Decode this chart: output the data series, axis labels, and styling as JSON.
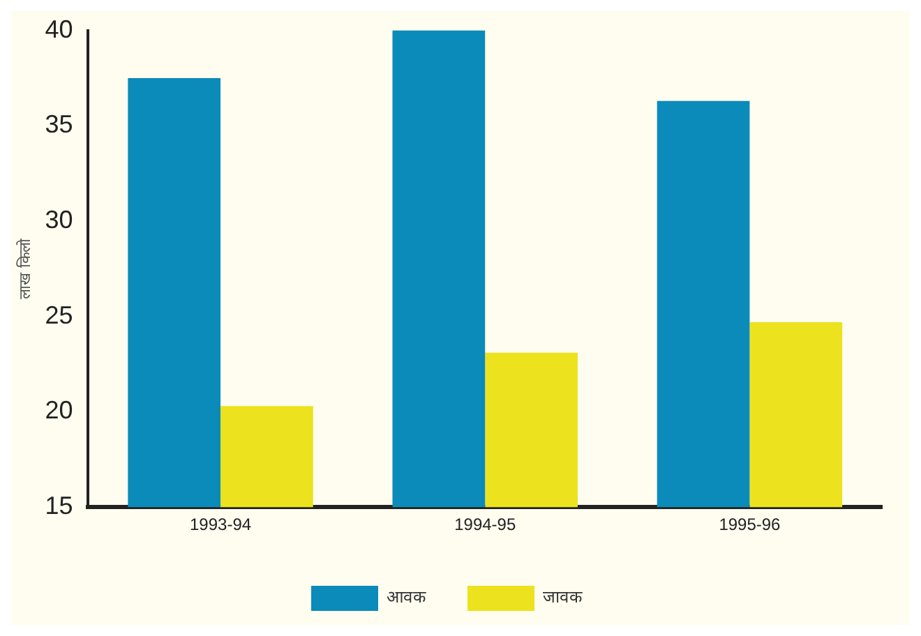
{
  "chart_data": {
    "type": "bar",
    "ylabel": "लाख किलो",
    "categories": [
      "1993-94",
      "1994-95",
      "1995-96"
    ],
    "series": [
      {
        "name": "आवक",
        "color": "#0b8bb9",
        "values": [
          37.5,
          40,
          36.3
        ]
      },
      {
        "name": "जावक",
        "color": "#ece21e",
        "values": [
          20.3,
          23.1,
          24.7
        ]
      }
    ],
    "ylim": [
      15,
      40
    ],
    "yticks": [
      15,
      20,
      25,
      30,
      35,
      40
    ],
    "grid": false,
    "legend": "bottom"
  }
}
